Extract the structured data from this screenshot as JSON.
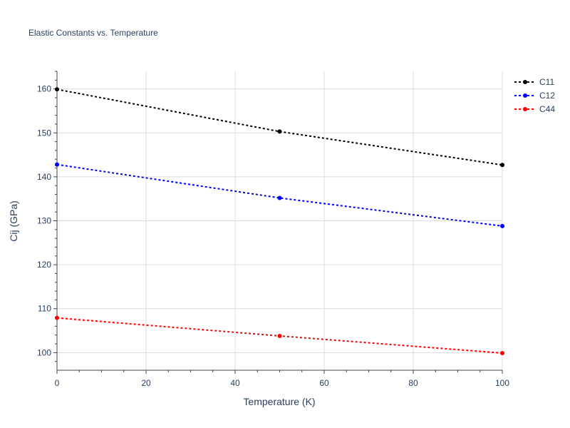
{
  "chart_data": {
    "type": "line",
    "title": "Elastic Constants vs. Temperature",
    "xlabel": "Temperature (K)",
    "ylabel": "Cij (GPa)",
    "xlim": [
      0,
      100
    ],
    "ylim": [
      96,
      164
    ],
    "xticks": [
      0,
      20,
      40,
      60,
      80,
      100
    ],
    "yticks": [
      100,
      110,
      120,
      130,
      140,
      150,
      160
    ],
    "grid": true,
    "legend_position": "top-right",
    "x": [
      0,
      50,
      100
    ],
    "series": [
      {
        "name": "C11",
        "color": "#000000",
        "values": [
          159.9,
          150.3,
          142.7
        ]
      },
      {
        "name": "C12",
        "color": "#0000ff",
        "values": [
          142.8,
          135.2,
          128.8
        ]
      },
      {
        "name": "C44",
        "color": "#ff0000",
        "values": [
          107.9,
          103.8,
          99.9
        ]
      }
    ]
  }
}
